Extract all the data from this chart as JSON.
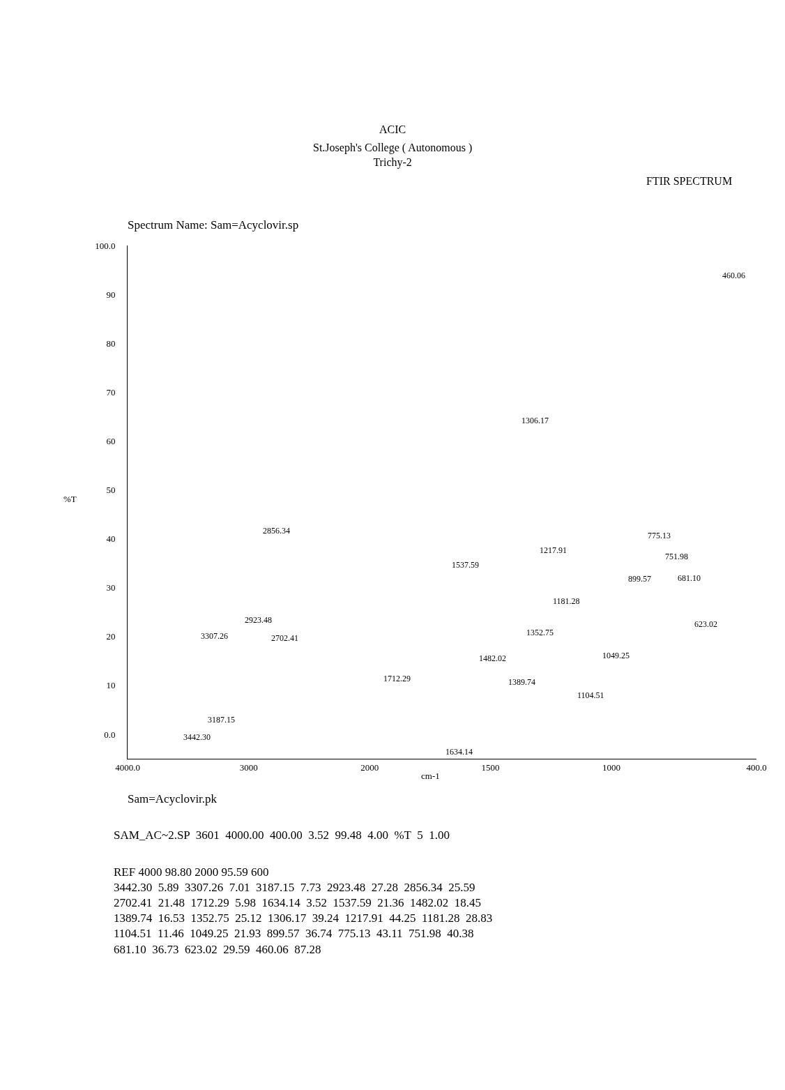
{
  "chart_data": [
    {
      "type": "scatter",
      "ylabel": "%T",
      "annotations": [
        "Spectrum Name: Sam=Acyclovir.sp",
        "Sam=Acyclovir.pk",
        "SAM_AC~2.SP  3601  4000.00  400.00  3.52  99.48  4.00  %T  5  1.00",
        "REF 4000 98.80 2000 95.59 600\n3442.30  5.89  3307.26  7.01  3187.15  7.73  2923.48  27.28  2856.34  25.59\n2702.41  21.48  1712.29  5.98  1634.14  3.52  1537.59  21.36  1482.02  18.45\n1389.74  16.53  1352.75  25.12  1306.17  39.24  1217.91  44.25  1181.28  28.83\n1104.51  11.46  1049.25  21.93  899.57  36.74  775.13  43.11  751.98  40.38\n681.10  36.73  623.02  29.59  460.06  87.28",
        "3442.30",
        "3307.26",
        "3187.15",
        "2923.48",
        "2856.34",
        "2702.41"
      ],
      "xlim": [
        4000,
        2000
      ],
      "xticks": [
        {
          "value": 4000,
          "label": "4000.0"
        },
        3000,
        2000
      ],
      "ylim": [
        -5,
        100
      ],
      "yticks": [
        {
          "value": 0,
          "label": "0.0"
        },
        10,
        20,
        30,
        40,
        50,
        60,
        70,
        80,
        90,
        {
          "value": 100,
          "label": "100.0"
        }
      ]
    },
    {
      "type": "scatter",
      "title": "ACIC",
      "subtitle": "St.Joseph's College ( Autonomous )\nTrichy-2",
      "xlabel": "cm-1",
      "xlim": [
        2000,
        400
      ],
      "xticks": [
        1500,
        1000,
        {
          "value": 400,
          "label": "400.0"
        }
      ],
      "ylim": [
        -5,
        100
      ],
      "tick_labels": "x",
      "annotations": [
        "FTIR SPECTRUM",
        "1712.29",
        "1634.14",
        "1537.59",
        "1482.02",
        "1389.74",
        "1352.75",
        "1306.17",
        "1217.91",
        "1181.28",
        "1104.51",
        "1049.25",
        "899.57",
        "775.13",
        "751.98",
        "681.10",
        "623.02",
        "460.06"
      ]
    }
  ]
}
